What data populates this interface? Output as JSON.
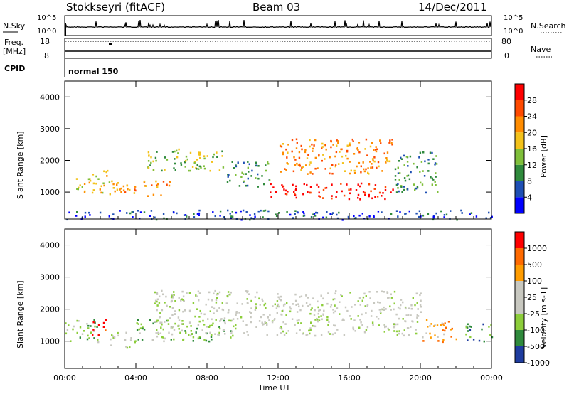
{
  "header": {
    "station": "Stokkseyri (fitACF)",
    "beam": "Beam 03",
    "date": "14/Dec/2011"
  },
  "panels": {
    "nsky_label": "N.Sky",
    "nsearch_label": "N.Search",
    "nsky_ticks": [
      "10^5",
      "10^0"
    ],
    "nsearch_ticks": [
      "10^5",
      "10^0"
    ],
    "freq_label_1": "Freq.",
    "freq_label_2": "[MHz]",
    "freq_ticks": [
      "18",
      "8"
    ],
    "nave_label": "Nave",
    "nave_ticks": [
      "80",
      "0"
    ],
    "cpid_label": "CPID",
    "cpid_value": "normal 150"
  },
  "colors": {
    "power_scale": [
      "#0000ff",
      "#1e4fb4",
      "#2f8a3c",
      "#7fbf3a",
      "#f3c21a",
      "#ff8c00",
      "#ff4a00",
      "#ff0000"
    ],
    "velocity_scale": [
      "#1e3c9f",
      "#2f8a3c",
      "#8ccd3a",
      "#c8c8c0",
      "#c8c8c0",
      "#ff9c00",
      "#ff6a00",
      "#ff0000"
    ],
    "ground_scatter": "#c8c8c0"
  },
  "chart_data": [
    {
      "type": "heatmap",
      "title": "Power",
      "xlabel": "Time UT",
      "ylabel": "Slant Range [km]",
      "x_ticks": [
        "00:00",
        "04:00",
        "08:00",
        "12:00",
        "16:00",
        "20:00",
        "00:00"
      ],
      "y_ticks": [
        1000,
        2000,
        3000,
        4000
      ],
      "ylim": [
        150,
        4500
      ],
      "colorbar": {
        "label": "Power [dB]",
        "ticks": [
          4,
          8,
          12,
          16,
          20,
          24,
          28
        ]
      },
      "echo_regions": [
        {
          "t": [
            0.5,
            2.5
          ],
          "r": [
            1000,
            1700
          ],
          "level": 4
        },
        {
          "t": [
            2.5,
            6.0
          ],
          "r": [
            900,
            1400
          ],
          "level": 5
        },
        {
          "t": [
            4.5,
            9.0
          ],
          "r": [
            1700,
            2400
          ],
          "level": 3
        },
        {
          "t": [
            9.0,
            11.5
          ],
          "r": [
            1200,
            2000
          ],
          "level": 2
        },
        {
          "t": [
            11.5,
            18.5
          ],
          "r": [
            800,
            1300
          ],
          "level": 7
        },
        {
          "t": [
            12.0,
            18.5
          ],
          "r": [
            1600,
            2700
          ],
          "level": 5
        },
        {
          "t": [
            18.5,
            21.0
          ],
          "r": [
            1000,
            2300
          ],
          "level": 2
        },
        {
          "t": [
            0.0,
            24.0
          ],
          "r": [
            150,
            450
          ],
          "level": 1
        }
      ]
    },
    {
      "type": "heatmap",
      "title": "Velocity",
      "xlabel": "Time UT",
      "ylabel": "Slant Range [km]",
      "x_ticks": [
        "00:00",
        "04:00",
        "08:00",
        "12:00",
        "16:00",
        "20:00",
        "00:00"
      ],
      "y_ticks": [
        1000,
        2000,
        3000,
        4000
      ],
      "ylim": [
        150,
        4500
      ],
      "colorbar": {
        "label": "Velocity [m s-1]",
        "ticks": [
          "1000",
          "500",
          "100",
          "25",
          "-25",
          "-100",
          "-500",
          "-1000"
        ]
      },
      "echo_regions": [
        {
          "t": [
            0.0,
            2.0
          ],
          "r": [
            1000,
            1700
          ],
          "level": 2
        },
        {
          "t": [
            1.5,
            2.3
          ],
          "r": [
            1200,
            1700
          ],
          "level": 7
        },
        {
          "t": [
            2.5,
            4.0
          ],
          "r": [
            800,
            1300
          ],
          "level": 3
        },
        {
          "t": [
            4.0,
            9.5
          ],
          "r": [
            1000,
            1700
          ],
          "level": 2
        },
        {
          "t": [
            5.0,
            20.0
          ],
          "r": [
            1200,
            2600
          ],
          "level": 3
        },
        {
          "t": [
            20.0,
            22.0
          ],
          "r": [
            1000,
            1700
          ],
          "level": 5
        },
        {
          "t": [
            22.5,
            24.0
          ],
          "r": [
            1000,
            1600
          ],
          "level": 1
        }
      ]
    }
  ]
}
